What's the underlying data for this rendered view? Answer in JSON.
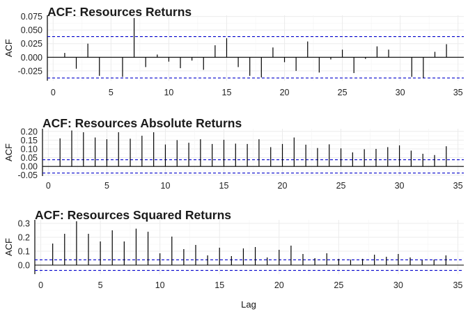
{
  "figure": {
    "xlabel": "Lag",
    "xticks": [
      0,
      5,
      10,
      15,
      20,
      25,
      30,
      35
    ]
  },
  "chart_data": [
    {
      "type": "bar",
      "title": "ACF: Resources Returns",
      "xlabel": "",
      "ylabel": "ACF",
      "xlim": [
        -0.5,
        35.5
      ],
      "ylim": [
        -0.043,
        0.077
      ],
      "yticks": [
        -0.025,
        0.0,
        0.025,
        0.05,
        0.075
      ],
      "ytick_labels": [
        "-0.025",
        "0.000",
        "0.025",
        "0.050",
        "0.075"
      ],
      "confidence_bound": 0.038,
      "grid": true,
      "color_bar": "#000000",
      "color_bound": "#0000cc",
      "lags": [
        1,
        2,
        3,
        4,
        5,
        6,
        7,
        8,
        9,
        10,
        11,
        12,
        13,
        14,
        15,
        16,
        17,
        18,
        19,
        20,
        21,
        22,
        23,
        24,
        25,
        26,
        27,
        28,
        29,
        30,
        31,
        32,
        33,
        34
      ],
      "values": [
        0.008,
        -0.021,
        0.025,
        -0.034,
        0.0,
        -0.036,
        0.072,
        -0.018,
        0.005,
        -0.008,
        -0.02,
        -0.006,
        -0.023,
        0.022,
        0.035,
        -0.018,
        -0.034,
        -0.037,
        0.018,
        -0.009,
        -0.025,
        0.029,
        -0.028,
        -0.004,
        0.014,
        -0.029,
        -0.003,
        0.02,
        0.014,
        0.0,
        -0.036,
        -0.038,
        0.01,
        0.024
      ]
    },
    {
      "type": "bar",
      "title": "ACF: Resources Absolute Returns",
      "xlabel": "",
      "ylabel": "ACF",
      "xlim": [
        -0.5,
        35.5
      ],
      "ylim": [
        -0.055,
        0.215
      ],
      "yticks": [
        -0.05,
        0.0,
        0.05,
        0.1,
        0.15,
        0.2
      ],
      "ytick_labels": [
        "-0.05",
        "0.00",
        "0.05",
        "0.10",
        "0.15",
        "0.20"
      ],
      "confidence_bound": 0.038,
      "grid": true,
      "color_bar": "#000000",
      "color_bound": "#0000cc",
      "lags": [
        1,
        2,
        3,
        4,
        5,
        6,
        7,
        8,
        9,
        10,
        11,
        12,
        13,
        14,
        15,
        16,
        17,
        18,
        19,
        20,
        21,
        22,
        23,
        24,
        25,
        26,
        27,
        28,
        29,
        30,
        31,
        32,
        33,
        34
      ],
      "values": [
        0.16,
        0.205,
        0.195,
        0.165,
        0.155,
        0.195,
        0.158,
        0.175,
        0.195,
        0.125,
        0.15,
        0.135,
        0.155,
        0.128,
        0.152,
        0.13,
        0.128,
        0.155,
        0.11,
        0.128,
        0.165,
        0.124,
        0.105,
        0.126,
        0.103,
        0.08,
        0.098,
        0.1,
        0.11,
        0.12,
        0.09,
        0.072,
        0.065,
        0.115
      ]
    },
    {
      "type": "bar",
      "title": "ACF: Resources Squared Returns",
      "xlabel": "Lag",
      "ylabel": "ACF",
      "xlim": [
        -0.5,
        35.5
      ],
      "ylim": [
        -0.065,
        0.325
      ],
      "yticks": [
        0.0,
        0.1,
        0.2,
        0.3
      ],
      "ytick_labels": [
        "0.0",
        "0.1",
        "0.2",
        "0.3"
      ],
      "confidence_bound": 0.038,
      "grid": true,
      "color_bar": "#000000",
      "color_bound": "#0000cc",
      "lags": [
        1,
        2,
        3,
        4,
        5,
        6,
        7,
        8,
        9,
        10,
        11,
        12,
        13,
        14,
        15,
        16,
        17,
        18,
        19,
        20,
        21,
        22,
        23,
        24,
        25,
        26,
        27,
        28,
        29,
        30,
        31,
        32,
        33,
        34
      ],
      "values": [
        0.155,
        0.225,
        0.315,
        0.225,
        0.17,
        0.25,
        0.17,
        0.262,
        0.24,
        0.085,
        0.205,
        0.115,
        0.145,
        0.07,
        0.125,
        0.065,
        0.12,
        0.13,
        0.055,
        0.11,
        0.14,
        0.08,
        0.05,
        0.085,
        0.045,
        0.04,
        0.045,
        0.075,
        0.06,
        0.08,
        0.055,
        0.035,
        0.04,
        0.07
      ]
    }
  ]
}
